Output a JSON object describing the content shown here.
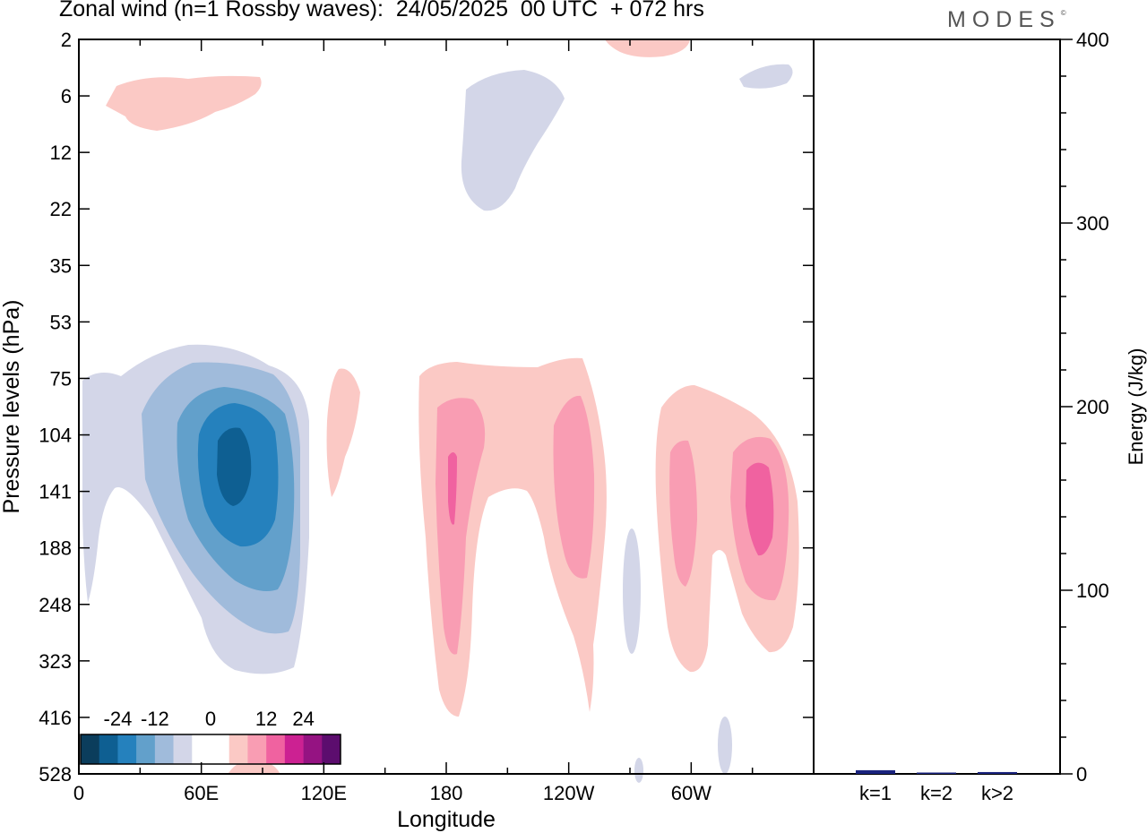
{
  "header": {
    "title": "Zonal wind (n=1 Rossby waves):  24/05/2025  00 UTC  + 072 hrs",
    "brand": "MODES",
    "brand_mark": "©"
  },
  "chart_data": [
    {
      "type": "heatmap",
      "title": "Zonal wind (n=1 Rossby waves):  24/05/2025  00 UTC  + 072 hrs",
      "xlabel": "Longitude",
      "ylabel": "Pressure levels (hPa)",
      "x_ticks": [
        "0",
        "60E",
        "120E",
        "180",
        "120W",
        "60W"
      ],
      "x_tick_values_deg_east": [
        0,
        60,
        120,
        180,
        240,
        300
      ],
      "xlim_deg_east": [
        0,
        360
      ],
      "y_ticks": [
        "2",
        "6",
        "12",
        "22",
        "35",
        "53",
        "75",
        "104",
        "141",
        "188",
        "248",
        "323",
        "416",
        "528"
      ],
      "y_axis_inverted": true,
      "colorbar": {
        "tick_labels": [
          "-24",
          "-12",
          "0",
          "12",
          "24"
        ],
        "colors": [
          "#0b3d5c",
          "#0e5f92",
          "#2581bd",
          "#62a0cb",
          "#a0bbdb",
          "#d3d6e8",
          "#ffffff",
          "#ffffff",
          "#fbc9c5",
          "#f99db3",
          "#f062a0",
          "#cc2192",
          "#951382",
          "#5c0d6e"
        ]
      },
      "features": [
        {
          "sign": "negative",
          "peak_level": "-24",
          "lon_deg_east": 75,
          "pressure_hPa": 125
        },
        {
          "sign": "negative",
          "lon_deg_east": 195,
          "pressure_hPa": 10
        },
        {
          "sign": "positive",
          "lon_deg_east": 182,
          "pressure_hPa": 140
        },
        {
          "sign": "positive",
          "lon_deg_east": 240,
          "pressure_hPa": 150
        },
        {
          "sign": "positive",
          "lon_deg_east": 285,
          "pressure_hPa": 150
        },
        {
          "sign": "positive",
          "lon_deg_east": 318,
          "pressure_hPa": 145
        },
        {
          "sign": "positive",
          "lon_deg_east": 30,
          "pressure_hPa": 6
        }
      ]
    },
    {
      "type": "bar",
      "ylabel": "Energy (J/kg)",
      "categories": [
        "k=1",
        "k=2",
        "k>2"
      ],
      "values": [
        2,
        0.5,
        1
      ],
      "ylim": [
        0,
        400
      ],
      "y_ticks": [
        "0",
        "100",
        "200",
        "300",
        "400"
      ],
      "bar_color": "#1a237e"
    }
  ]
}
